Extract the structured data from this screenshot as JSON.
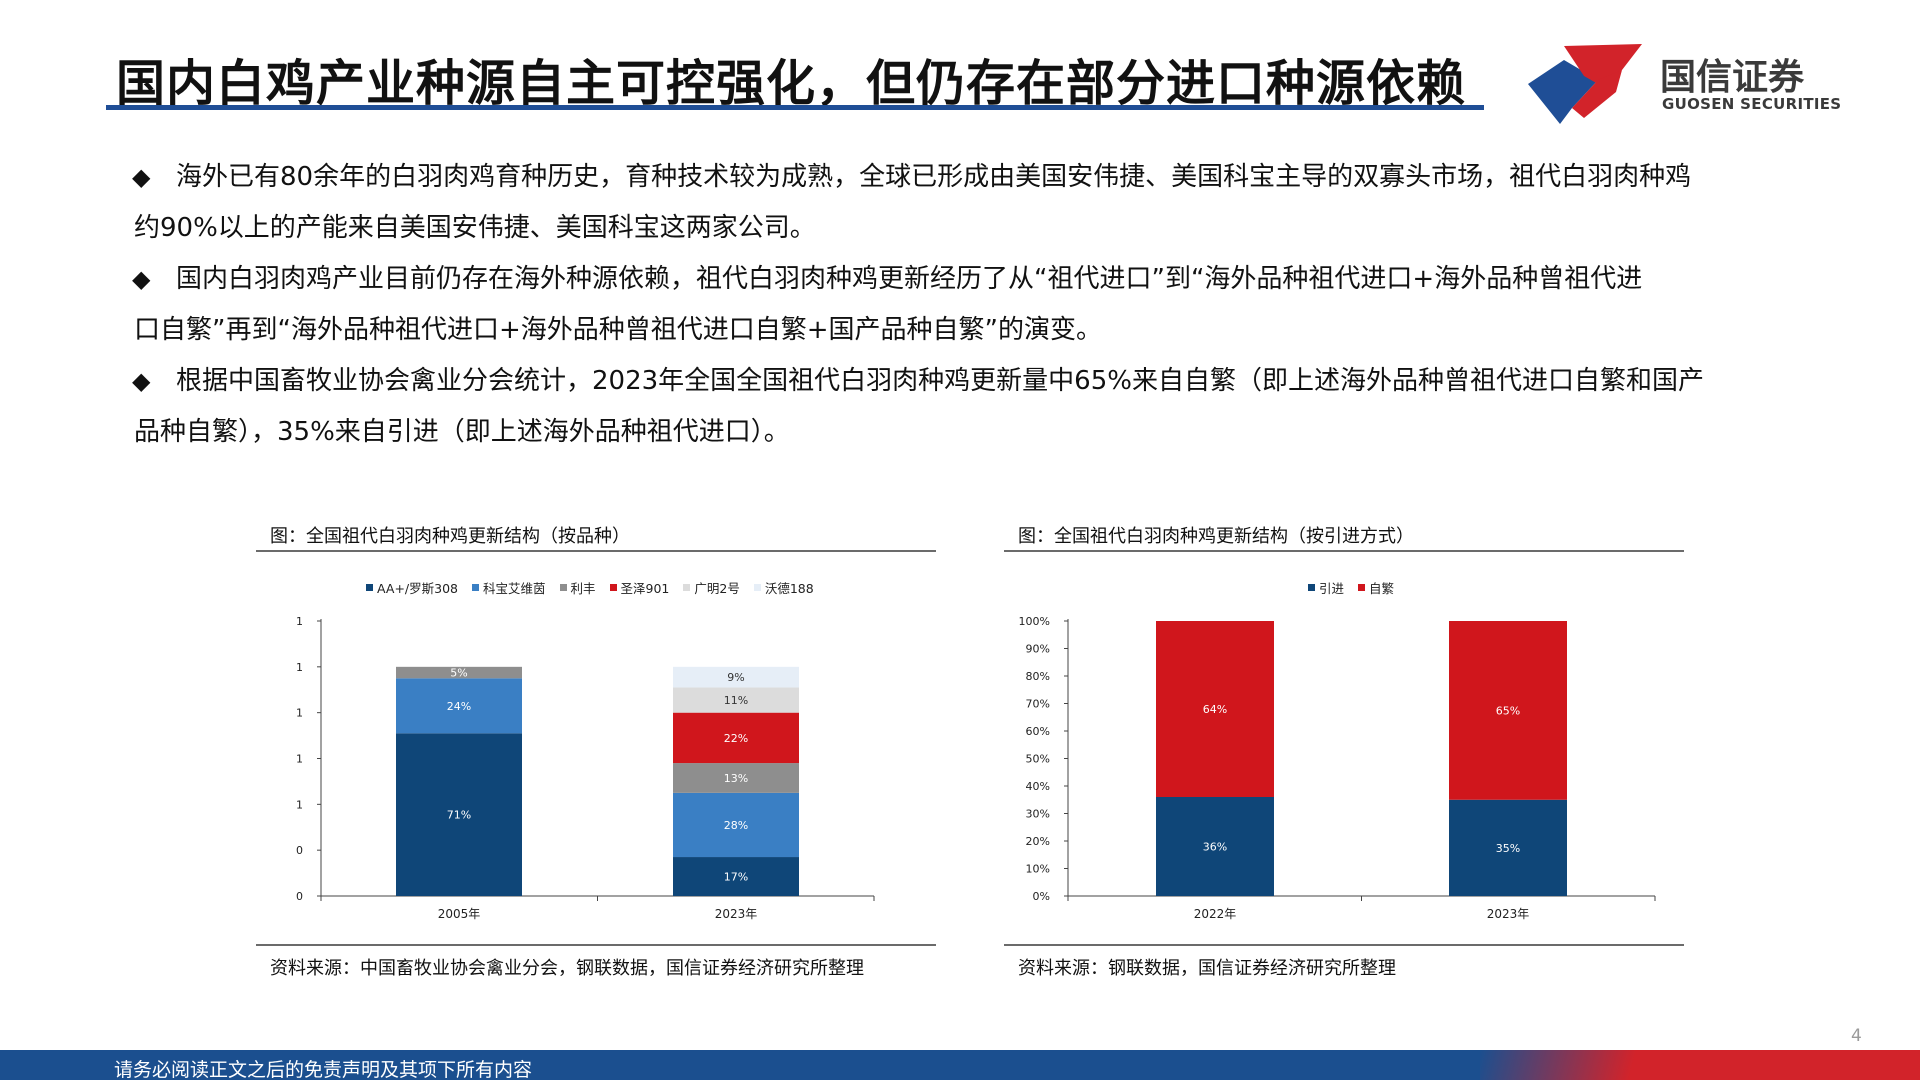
{
  "header": {
    "title": "国内白鸡产业种源自主可控强化，但仍存在部分进口种源依赖",
    "logo_cn": "国信证券",
    "logo_en": "GUOSEN SECURITIES"
  },
  "bullets": [
    {
      "line1": "海外已有80余年的白羽肉鸡育种历史，育种技术较为成熟，全球已形成由美国安伟捷、美国科宝主导的双寡头市场，祖代白羽肉种鸡",
      "line2": "约90%以上的产能来自美国安伟捷、美国科宝这两家公司。"
    },
    {
      "line1": "国内白羽肉鸡产业目前仍存在海外种源依赖，祖代白羽肉种鸡更新经历了从“祖代进口”到“海外品种祖代进口+海外品种曾祖代进",
      "line2": "口自繁”再到“海外品种祖代进口+海外品种曾祖代进口自繁+国产品种自繁”的演变。"
    },
    {
      "line1": "根据中国畜牧业协会禽业分会统计，2023年全国全国祖代白羽肉种鸡更新量中65%来自自繁（即上述海外品种曾祖代进口自繁和国产",
      "line2": "品种自繁），35%来自引进（即上述海外品种祖代进口）。"
    }
  ],
  "bullet_symbol": "◆",
  "chart_left": {
    "caption": "图：全国祖代白羽肉种鸡更新结构（按品种）",
    "source": "资料来源：中国畜牧业协会禽业分会，钢联数据，国信证券经济研究所整理"
  },
  "chart_right": {
    "caption": "图：全国祖代白羽肉种鸡更新结构（按引进方式）",
    "source": "资料来源：钢联数据，国信证券经济研究所整理"
  },
  "chart_data": [
    {
      "type": "bar",
      "stacked": true,
      "categories": [
        "2005年",
        "2023年"
      ],
      "y_tick_labels": [
        "0",
        "0",
        "1",
        "1",
        "1",
        "1",
        "1"
      ],
      "series": [
        {
          "name": "AA+/罗斯308",
          "color": "#0f4678",
          "values": [
            71,
            17
          ],
          "labels": [
            "71%",
            "17%"
          ]
        },
        {
          "name": "科宝艾维茵",
          "color": "#3a7fc4",
          "values": [
            24,
            28
          ],
          "labels": [
            "24%",
            "28%"
          ]
        },
        {
          "name": "利丰",
          "color": "#8e8e8e",
          "values": [
            5,
            13
          ],
          "labels": [
            "5%",
            "13%"
          ]
        },
        {
          "name": "圣泽901",
          "color": "#d0161c",
          "values": [
            0,
            22
          ],
          "labels": [
            "",
            "22%"
          ]
        },
        {
          "name": "广明2号",
          "color": "#dcdcdc",
          "values": [
            0,
            11
          ],
          "labels": [
            "",
            "11%"
          ]
        },
        {
          "name": "沃德188",
          "color": "#e6eef7",
          "values": [
            0,
            9
          ],
          "labels": [
            "",
            "9%"
          ]
        }
      ],
      "ylim": [
        0,
        120
      ],
      "legend_position": "top"
    },
    {
      "type": "bar",
      "stacked": true,
      "categories": [
        "2022年",
        "2023年"
      ],
      "y_tick_labels": [
        "0%",
        "10%",
        "20%",
        "30%",
        "40%",
        "50%",
        "60%",
        "70%",
        "80%",
        "90%",
        "100%"
      ],
      "series": [
        {
          "name": "引进",
          "color": "#0f4678",
          "values": [
            36,
            35
          ],
          "labels": [
            "36%",
            "35%"
          ]
        },
        {
          "name": "自繁",
          "color": "#d0161c",
          "values": [
            64,
            65
          ],
          "labels": [
            "64%",
            "65%"
          ]
        }
      ],
      "ylim": [
        0,
        100
      ],
      "legend_position": "top"
    }
  ],
  "footer": {
    "disclaimer": "请务必阅读正文之后的免责声明及其项下所有内容",
    "page_number": "4"
  },
  "colors": {
    "brand_blue": "#1f4e96",
    "brand_red": "#d2232a"
  }
}
